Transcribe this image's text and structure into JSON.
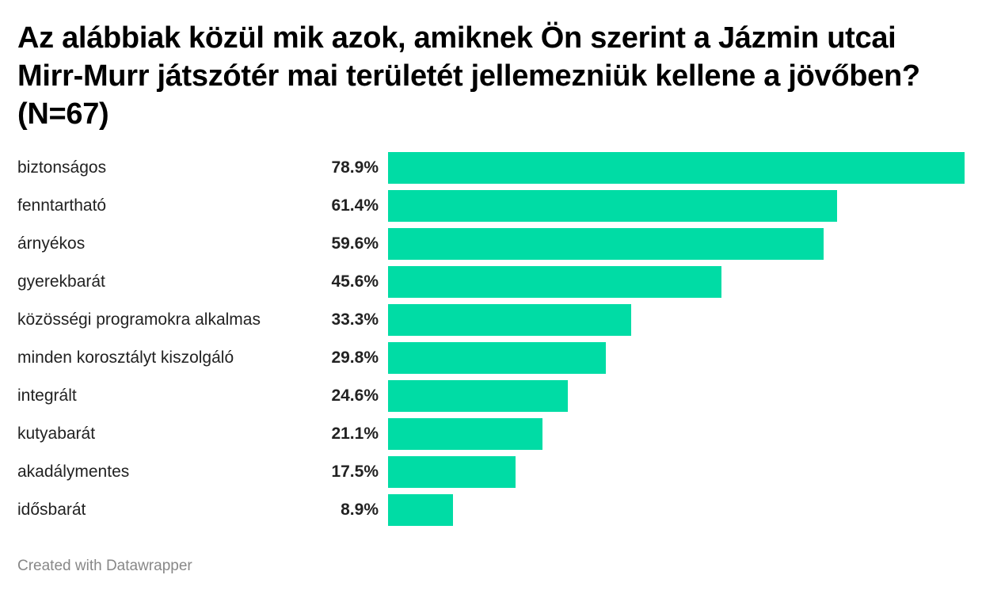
{
  "chart_data": {
    "type": "bar",
    "orientation": "horizontal",
    "title": "Az alábbiak közül mik azok, amiknek Ön szerint a Jázmin utcai Mirr-Murr játszótér mai területét jellemezniük kellene a jövőben? (N=67)",
    "categories": [
      "biztonságos",
      "fenntartható",
      "árnyékos",
      "gyerekbarát",
      "közösségi programokra alkalmas",
      "minden korosztályt kiszolgáló",
      "integrált",
      "kutyabarát",
      "akadálymentes",
      "idősbarát"
    ],
    "values": [
      78.9,
      61.4,
      59.6,
      45.6,
      33.3,
      29.8,
      24.6,
      21.1,
      17.5,
      8.9
    ],
    "value_labels": [
      "78.9%",
      "61.4%",
      "59.6%",
      "45.6%",
      "33.3%",
      "29.8%",
      "24.6%",
      "21.1%",
      "17.5%",
      "8.9%"
    ],
    "unit": "%",
    "xlim": [
      0,
      78.9
    ],
    "bar_color": "#00dca5",
    "grid": false,
    "legend": "none"
  },
  "footer": {
    "credit": "Created with Datawrapper"
  }
}
